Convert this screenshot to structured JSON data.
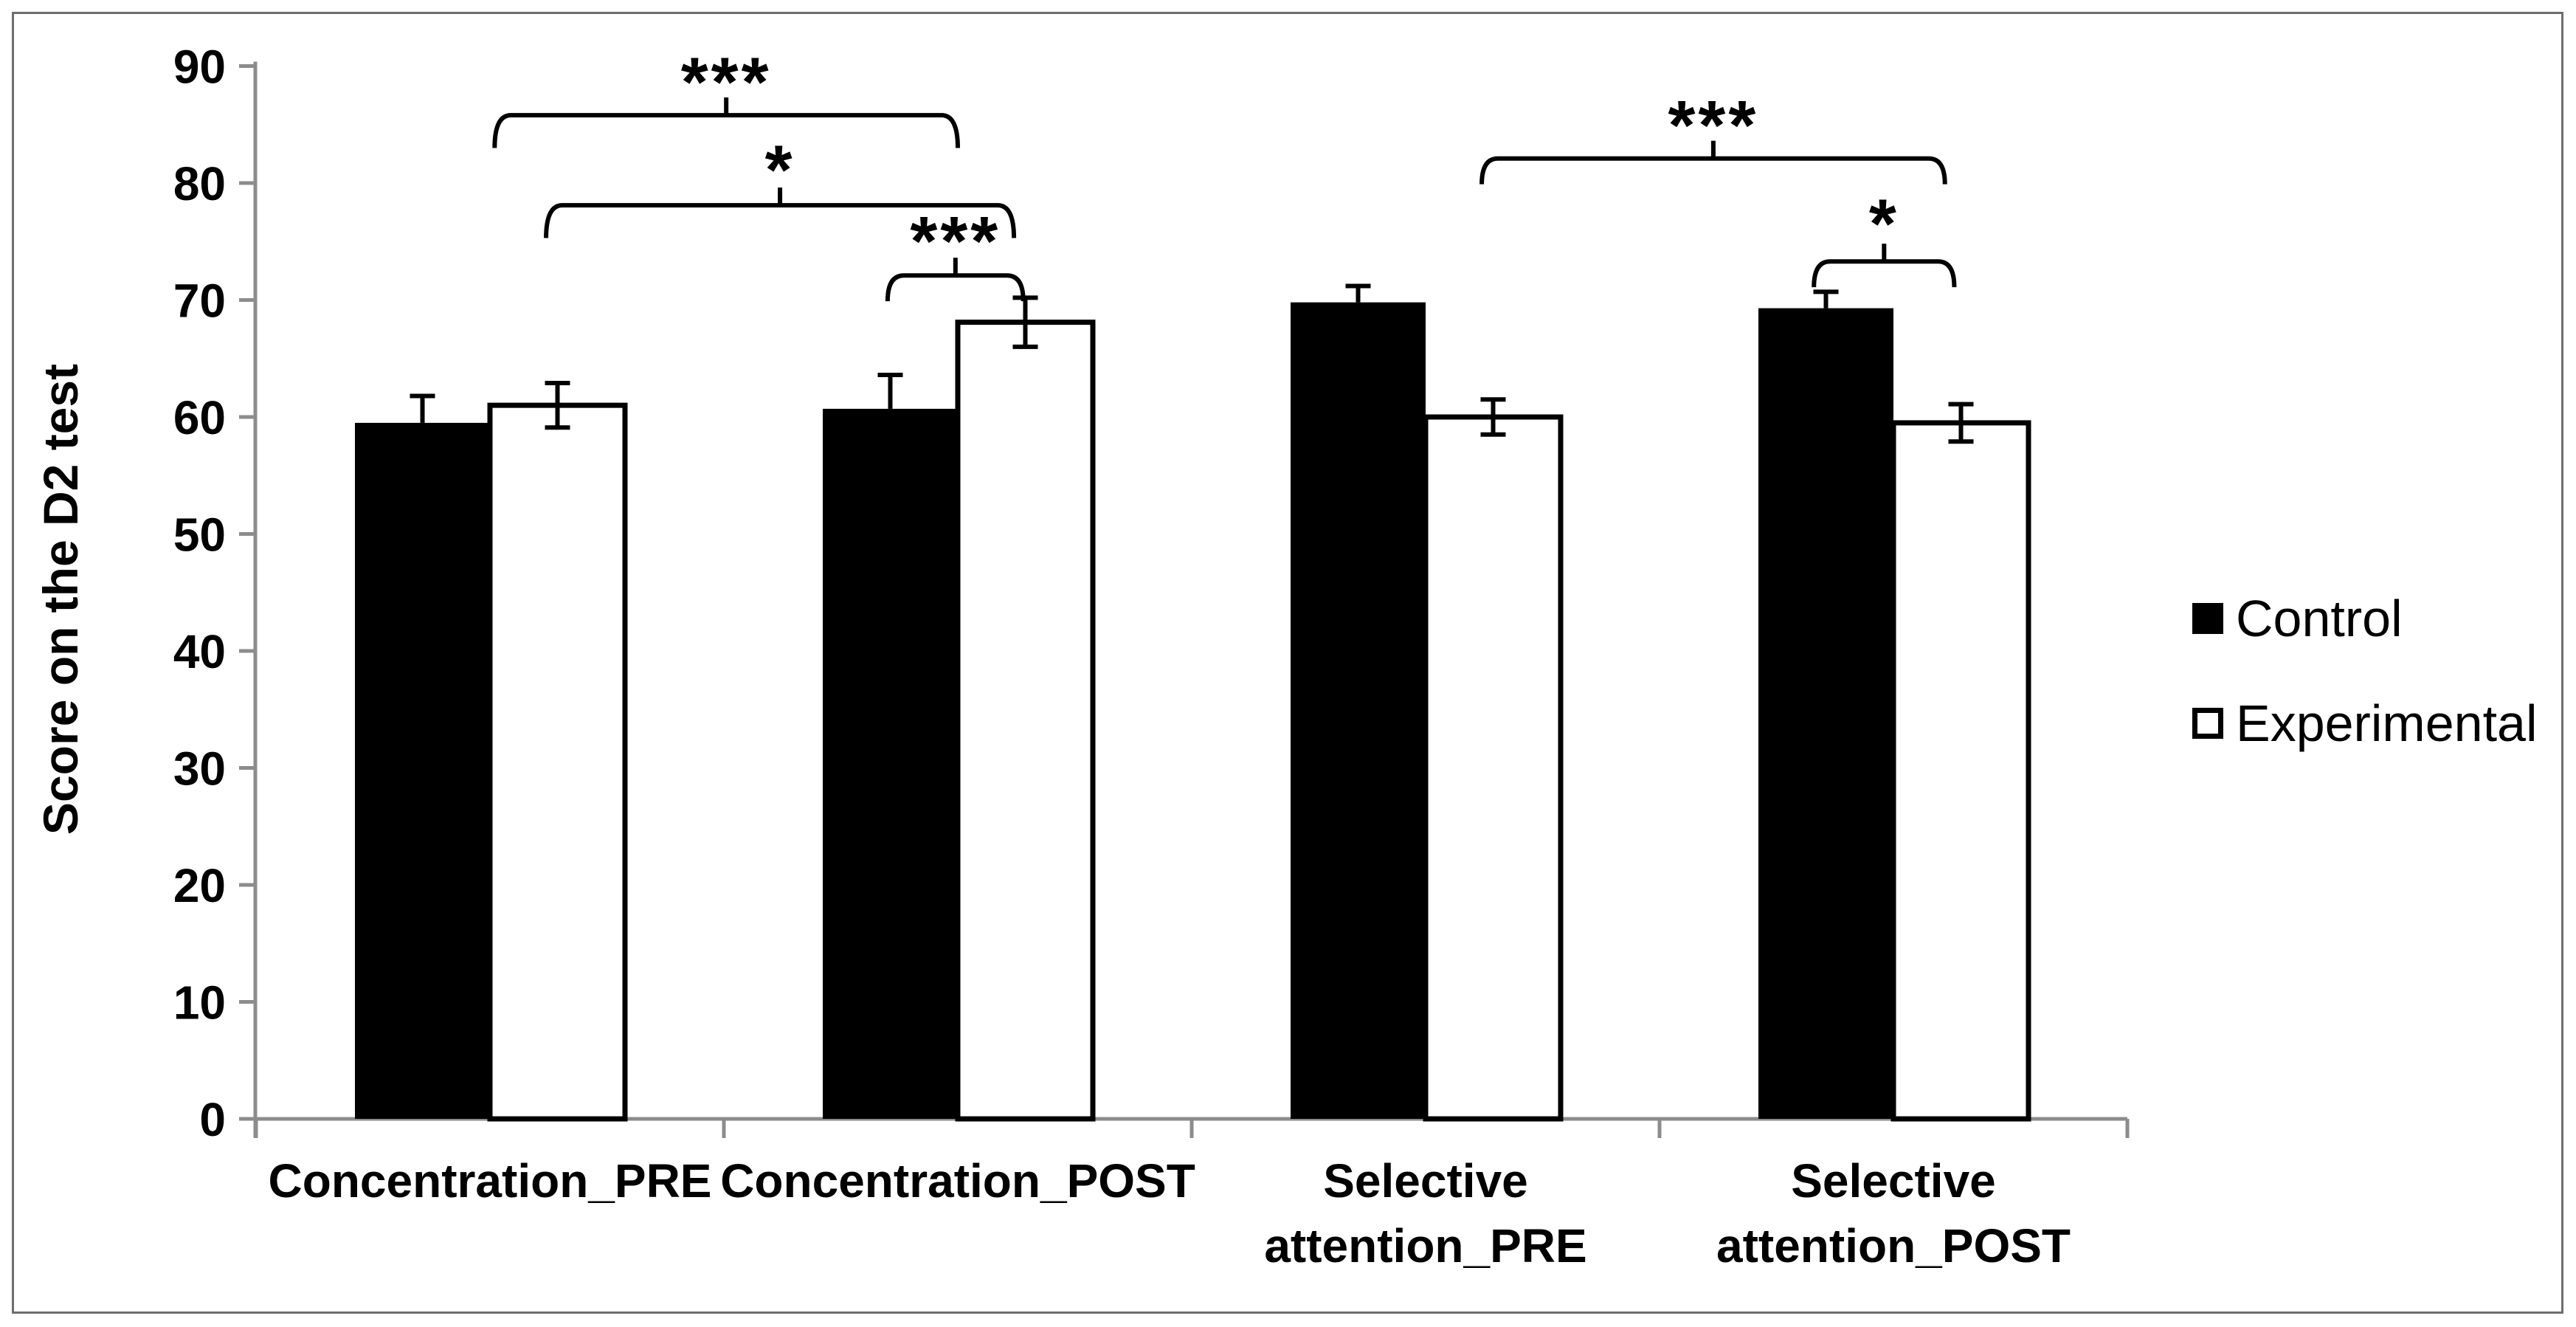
{
  "chart_data": {
    "type": "bar",
    "title": "",
    "ylabel": "Score on the D2 test",
    "xlabel": "",
    "ylim": [
      0,
      90
    ],
    "yticks": [
      0,
      10,
      20,
      30,
      40,
      50,
      60,
      70,
      80,
      90
    ],
    "grid": false,
    "categories": [
      "Concentration_PRE",
      "Concentration_POST",
      "Selective attention_PRE",
      "Selective attention_POST"
    ],
    "category_label_lines": [
      [
        "Concentration_PRE"
      ],
      [
        "Concentration_POST"
      ],
      [
        "Selective",
        "attention_PRE"
      ],
      [
        "Selective",
        "attention_POST"
      ]
    ],
    "series": [
      {
        "name": "Control",
        "fill": "#000000",
        "values": [
          59.5,
          60.7,
          69.8,
          69.3
        ],
        "errors": [
          2.3,
          2.9,
          1.4,
          1.4
        ],
        "error_bars": "upper"
      },
      {
        "name": "Experimental",
        "fill": "#ffffff",
        "values": [
          61.0,
          68.1,
          60.0,
          59.5
        ],
        "errors": [
          1.9,
          2.1,
          1.5,
          1.6
        ],
        "error_bars": "both"
      }
    ],
    "significance": [
      {
        "label": "***",
        "x1": 0.51,
        "x2": 1.5,
        "line_y": 85.8,
        "label_y": 88.8,
        "drop": 2.8
      },
      {
        "label": "*",
        "x1": 0.62,
        "x2": 1.62,
        "line_y": 78.1,
        "label_y": 81.3,
        "drop": 2.8
      },
      {
        "label": "***",
        "x1": 1.35,
        "x2": 1.64,
        "line_y": 72.1,
        "label_y": 75.2,
        "drop": 2.2
      },
      {
        "label": "***",
        "x1": 2.62,
        "x2": 3.61,
        "line_y": 82.1,
        "label_y": 85.1,
        "drop": 2.2
      },
      {
        "label": "*",
        "x1": 3.33,
        "x2": 3.63,
        "line_y": 73.3,
        "label_y": 76.7,
        "drop": 2.2
      }
    ],
    "legend": {
      "position": "right-middle",
      "entries": [
        {
          "label": "Control",
          "swatch": "filled-black"
        },
        {
          "label": "Experimental",
          "swatch": "open-white"
        }
      ]
    },
    "colors": {
      "bar_black": "#000000",
      "bar_white": "#ffffff",
      "bar_stroke": "#000000",
      "axis": "#8c8c8c",
      "text": "#000000",
      "frame": "#6e6e6e"
    }
  }
}
